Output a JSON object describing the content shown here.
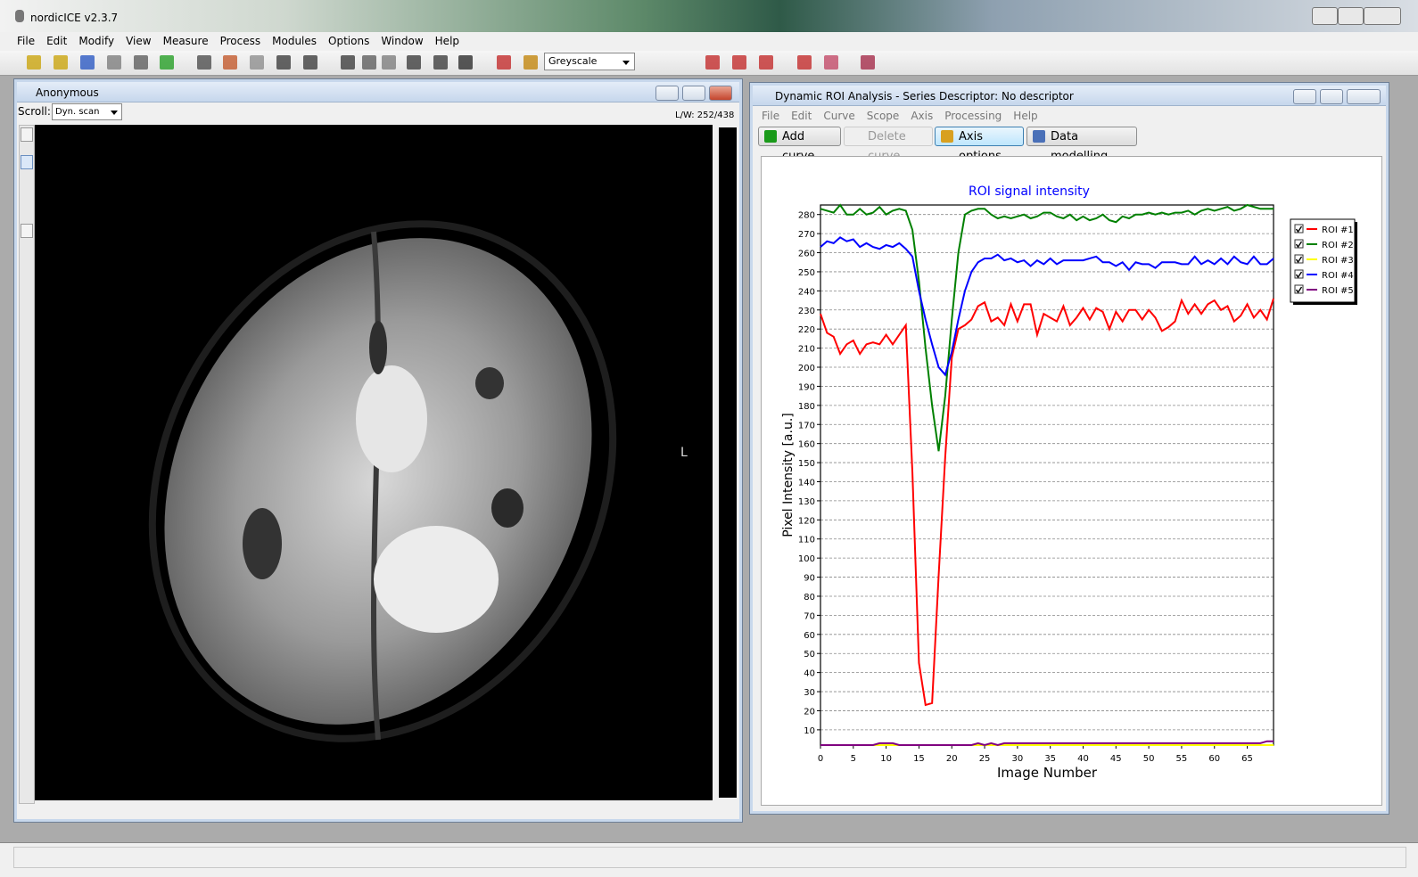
{
  "app": {
    "title": "nordicICE v2.3.7",
    "menu": [
      "File",
      "Edit",
      "Modify",
      "View",
      "Measure",
      "Process",
      "Modules",
      "Options",
      "Window",
      "Help"
    ],
    "colormap": "Greyscale"
  },
  "image_window": {
    "title": "Anonymous",
    "scroll_label": "Scroll:",
    "scroll_mode": "Dyn. scan",
    "level_window": "L/W: 252/438",
    "orientation": "L"
  },
  "analysis_window": {
    "title": "Dynamic ROI Analysis - Series Descriptor: No descriptor",
    "menu": [
      "File",
      "Edit",
      "Curve",
      "Scope",
      "Axis",
      "Processing",
      "Help"
    ],
    "buttons": [
      "Add curve",
      "Delete curve",
      "Axis options",
      "Data modelling"
    ]
  },
  "chart_data": {
    "type": "line",
    "title": "ROI signal intensity",
    "xlabel": "Image Number",
    "ylabel": "Pixel Intensity [a.u.]",
    "x": [
      0,
      1,
      2,
      3,
      4,
      5,
      6,
      7,
      8,
      9,
      10,
      11,
      12,
      13,
      14,
      15,
      16,
      17,
      18,
      19,
      20,
      21,
      22,
      23,
      24,
      25,
      26,
      27,
      28,
      29,
      30,
      31,
      32,
      33,
      34,
      35,
      36,
      37,
      38,
      39,
      40,
      41,
      42,
      43,
      44,
      45,
      46,
      47,
      48,
      49,
      50,
      51,
      52,
      53,
      54,
      55,
      56,
      57,
      58,
      59,
      60,
      61,
      62,
      63,
      64,
      65,
      66,
      67,
      68,
      69
    ],
    "xlim": [
      0,
      69
    ],
    "xticks": [
      0,
      5,
      10,
      15,
      20,
      25,
      30,
      35,
      40,
      45,
      50,
      55,
      60,
      65
    ],
    "ylim": [
      2,
      285
    ],
    "yticks": [
      10,
      20,
      30,
      40,
      50,
      60,
      70,
      80,
      90,
      100,
      110,
      120,
      130,
      140,
      150,
      160,
      170,
      180,
      190,
      200,
      210,
      220,
      230,
      240,
      250,
      260,
      270,
      280
    ],
    "grid": true,
    "legend": "outside-right",
    "series": [
      {
        "name": "ROI #1",
        "color": "#ff0000",
        "values": [
          228,
          218,
          216,
          207,
          212,
          214,
          207,
          212,
          213,
          212,
          217,
          212,
          217,
          222,
          145,
          45,
          23,
          24,
          91,
          153,
          205,
          220,
          222,
          225,
          232,
          234,
          224,
          226,
          222,
          233,
          224,
          233,
          233,
          217,
          228,
          226,
          224,
          232,
          222,
          226,
          231,
          225,
          231,
          229,
          220,
          229,
          224,
          230,
          230,
          225,
          230,
          226,
          219,
          221,
          224,
          235,
          228,
          233,
          228,
          233,
          235,
          230,
          232,
          224,
          227,
          233,
          226,
          230,
          225,
          236
        ]
      },
      {
        "name": "ROI #2",
        "color": "#008000",
        "values": [
          283,
          282,
          281,
          285,
          280,
          280,
          283,
          280,
          281,
          284,
          280,
          282,
          283,
          282,
          272,
          245,
          210,
          180,
          156,
          185,
          225,
          260,
          280,
          282,
          283,
          283,
          280,
          278,
          279,
          278,
          279,
          280,
          278,
          279,
          281,
          281,
          279,
          278,
          280,
          277,
          279,
          277,
          278,
          280,
          277,
          276,
          279,
          278,
          280,
          280,
          281,
          280,
          281,
          280,
          281,
          281,
          282,
          280,
          282,
          283,
          282,
          283,
          284,
          282,
          283,
          285,
          284,
          283,
          283,
          283
        ]
      },
      {
        "name": "ROI #3",
        "color": "#ffff00",
        "values": [
          2,
          2,
          2,
          2,
          2,
          2,
          2,
          2,
          2,
          2,
          2,
          2,
          2,
          2,
          2,
          2,
          2,
          2,
          2,
          2,
          2,
          2,
          2,
          2,
          2,
          2,
          2,
          2,
          2,
          2,
          2,
          2,
          2,
          2,
          2,
          2,
          2,
          2,
          2,
          2,
          2,
          2,
          2,
          2,
          2,
          2,
          2,
          2,
          2,
          2,
          2,
          2,
          2,
          2,
          2,
          2,
          2,
          2,
          2,
          2,
          2,
          2,
          2,
          2,
          2,
          2,
          2,
          2,
          2,
          2
        ]
      },
      {
        "name": "ROI #4",
        "color": "#0000ff",
        "values": [
          263,
          266,
          265,
          268,
          266,
          267,
          263,
          265,
          263,
          262,
          264,
          263,
          265,
          262,
          258,
          240,
          225,
          212,
          200,
          196,
          208,
          225,
          240,
          250,
          255,
          257,
          257,
          259,
          256,
          257,
          255,
          256,
          253,
          256,
          254,
          257,
          254,
          256,
          256,
          256,
          256,
          257,
          258,
          255,
          255,
          253,
          255,
          251,
          255,
          254,
          254,
          252,
          255,
          255,
          255,
          254,
          254,
          258,
          254,
          256,
          254,
          257,
          254,
          258,
          255,
          254,
          258,
          254,
          254,
          257
        ]
      },
      {
        "name": "ROI #5",
        "color": "#800080",
        "values": [
          2,
          2,
          2,
          2,
          2,
          2,
          2,
          2,
          2,
          3,
          3,
          3,
          2,
          2,
          2,
          2,
          2,
          2,
          2,
          2,
          2,
          2,
          2,
          2,
          3,
          2,
          3,
          2,
          3,
          3,
          3,
          3,
          3,
          3,
          3,
          3,
          3,
          3,
          3,
          3,
          3,
          3,
          3,
          3,
          3,
          3,
          3,
          3,
          3,
          3,
          3,
          3,
          3,
          3,
          3,
          3,
          3,
          3,
          3,
          3,
          3,
          3,
          3,
          3,
          3,
          3,
          3,
          3,
          4,
          4
        ]
      }
    ]
  }
}
